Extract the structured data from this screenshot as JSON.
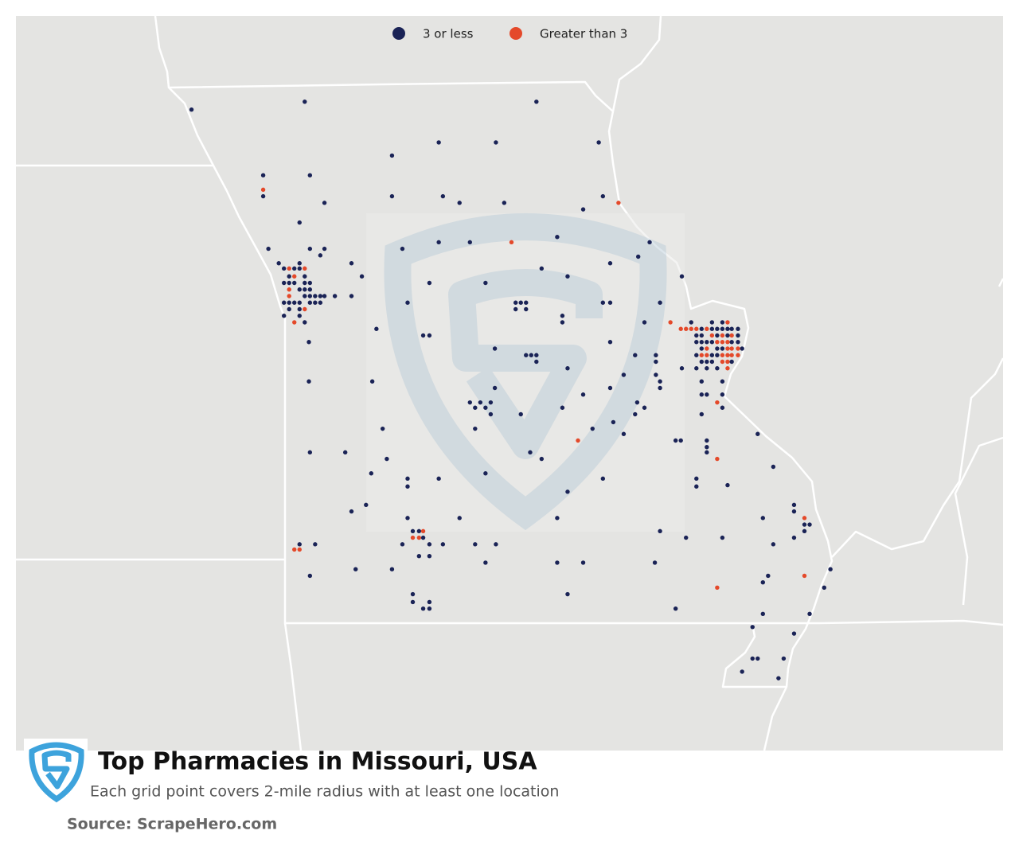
{
  "chart_data": {
    "type": "map",
    "title": "Top Pharmacies in Missouri, USA",
    "subtitle": "Each grid point covers 2-mile radius with at least one location",
    "source": "Source: ScrapeHero.com",
    "series": [
      {
        "name": "3 or less",
        "color": "#1a2356",
        "points": [
          [
            -95.52,
            40.4
          ],
          [
            -94.43,
            40.46
          ],
          [
            -92.2,
            40.46
          ],
          [
            -93.14,
            40.15
          ],
          [
            -92.59,
            40.15
          ],
          [
            -91.6,
            40.15
          ],
          [
            -93.59,
            40.05
          ],
          [
            -94.83,
            39.9
          ],
          [
            -94.38,
            39.9
          ],
          [
            -94.83,
            39.74
          ],
          [
            -93.59,
            39.74
          ],
          [
            -93.1,
            39.74
          ],
          [
            -91.56,
            39.74
          ],
          [
            -94.24,
            39.69
          ],
          [
            -92.94,
            39.69
          ],
          [
            -92.51,
            39.69
          ],
          [
            -91.75,
            39.64
          ],
          [
            -94.48,
            39.54
          ],
          [
            -94.78,
            39.34
          ],
          [
            -93.14,
            39.39
          ],
          [
            -92.84,
            39.39
          ],
          [
            -92.0,
            39.43
          ],
          [
            -91.11,
            39.39
          ],
          [
            -94.38,
            39.34
          ],
          [
            -94.24,
            39.34
          ],
          [
            -94.28,
            39.29
          ],
          [
            -94.68,
            39.23
          ],
          [
            -94.48,
            39.23
          ],
          [
            -93.98,
            39.23
          ],
          [
            -93.49,
            39.34
          ],
          [
            -91.22,
            39.28
          ],
          [
            -91.49,
            39.23
          ],
          [
            -92.15,
            39.19
          ],
          [
            -94.63,
            39.19
          ],
          [
            -94.53,
            39.19
          ],
          [
            -94.48,
            39.19
          ],
          [
            -94.58,
            39.13
          ],
          [
            -94.43,
            39.13
          ],
          [
            -94.63,
            39.08
          ],
          [
            -94.58,
            39.08
          ],
          [
            -94.53,
            39.08
          ],
          [
            -94.43,
            39.08
          ],
          [
            -94.38,
            39.08
          ],
          [
            -94.48,
            39.03
          ],
          [
            -94.43,
            39.03
          ],
          [
            -94.38,
            39.03
          ],
          [
            -94.43,
            38.98
          ],
          [
            -94.38,
            38.98
          ],
          [
            -94.33,
            38.98
          ],
          [
            -94.28,
            38.98
          ],
          [
            -94.24,
            38.98
          ],
          [
            -94.14,
            38.98
          ],
          [
            -93.98,
            38.98
          ],
          [
            -94.63,
            38.93
          ],
          [
            -94.58,
            38.93
          ],
          [
            -94.53,
            38.93
          ],
          [
            -94.48,
            38.93
          ],
          [
            -94.38,
            38.93
          ],
          [
            -94.33,
            38.93
          ],
          [
            -94.28,
            38.93
          ],
          [
            -94.58,
            38.88
          ],
          [
            -94.48,
            38.88
          ],
          [
            -94.63,
            38.83
          ],
          [
            -94.48,
            38.83
          ],
          [
            -94.43,
            38.78
          ],
          [
            -93.88,
            39.13
          ],
          [
            -93.23,
            39.08
          ],
          [
            -92.69,
            39.08
          ],
          [
            -91.9,
            39.13
          ],
          [
            -90.8,
            39.13
          ],
          [
            -93.44,
            38.93
          ],
          [
            -92.4,
            38.93
          ],
          [
            -92.35,
            38.93
          ],
          [
            -92.3,
            38.93
          ],
          [
            -91.56,
            38.93
          ],
          [
            -91.49,
            38.93
          ],
          [
            -91.01,
            38.93
          ],
          [
            -92.4,
            38.88
          ],
          [
            -92.3,
            38.88
          ],
          [
            -91.95,
            38.83
          ],
          [
            -91.95,
            38.78
          ],
          [
            -91.16,
            38.78
          ],
          [
            -93.74,
            38.73
          ],
          [
            -93.29,
            38.68
          ],
          [
            -93.23,
            38.68
          ],
          [
            -94.39,
            38.63
          ],
          [
            -92.6,
            38.58
          ],
          [
            -91.49,
            38.63
          ],
          [
            -92.3,
            38.53
          ],
          [
            -92.25,
            38.53
          ],
          [
            -92.2,
            38.53
          ],
          [
            -91.25,
            38.53
          ],
          [
            -91.05,
            38.53
          ],
          [
            -92.2,
            38.48
          ],
          [
            -91.9,
            38.43
          ],
          [
            -90.8,
            38.43
          ],
          [
            -91.05,
            38.48
          ],
          [
            -91.05,
            38.38
          ],
          [
            -91.01,
            38.33
          ],
          [
            -91.01,
            38.28
          ],
          [
            -91.36,
            38.38
          ],
          [
            -94.39,
            38.33
          ],
          [
            -93.78,
            38.33
          ],
          [
            -92.6,
            38.28
          ],
          [
            -91.49,
            38.28
          ],
          [
            -91.75,
            38.23
          ],
          [
            -92.84,
            38.17
          ],
          [
            -92.74,
            38.17
          ],
          [
            -92.64,
            38.17
          ],
          [
            -91.23,
            38.17
          ],
          [
            -92.79,
            38.13
          ],
          [
            -92.69,
            38.13
          ],
          [
            -92.64,
            38.08
          ],
          [
            -92.35,
            38.08
          ],
          [
            -91.95,
            38.13
          ],
          [
            -91.25,
            38.08
          ],
          [
            -91.16,
            38.13
          ],
          [
            -93.68,
            37.97
          ],
          [
            -92.79,
            37.97
          ],
          [
            -91.66,
            37.97
          ],
          [
            -91.46,
            38.02
          ],
          [
            -91.36,
            37.93
          ],
          [
            -94.38,
            37.79
          ],
          [
            -94.04,
            37.79
          ],
          [
            -92.26,
            37.79
          ],
          [
            -93.64,
            37.74
          ],
          [
            -92.15,
            37.74
          ],
          [
            -93.79,
            37.63
          ],
          [
            -92.69,
            37.63
          ],
          [
            -93.44,
            37.59
          ],
          [
            -93.44,
            37.53
          ],
          [
            -93.14,
            37.59
          ],
          [
            -91.56,
            37.59
          ],
          [
            -91.9,
            37.49
          ],
          [
            -93.84,
            37.39
          ],
          [
            -93.98,
            37.34
          ],
          [
            -93.44,
            37.29
          ],
          [
            -92.94,
            37.29
          ],
          [
            -92.0,
            37.29
          ],
          [
            -93.39,
            37.19
          ],
          [
            -93.33,
            37.19
          ],
          [
            -91.01,
            37.19
          ],
          [
            -93.29,
            37.14
          ],
          [
            -94.48,
            37.09
          ],
          [
            -94.33,
            37.09
          ],
          [
            -93.49,
            37.09
          ],
          [
            -93.23,
            37.09
          ],
          [
            -93.1,
            37.09
          ],
          [
            -92.79,
            37.09
          ],
          [
            -92.59,
            37.09
          ],
          [
            -93.33,
            37.0
          ],
          [
            -93.23,
            37.0
          ],
          [
            -92.69,
            36.95
          ],
          [
            -92.0,
            36.95
          ],
          [
            -91.75,
            36.95
          ],
          [
            -91.06,
            36.95
          ],
          [
            -94.38,
            36.85
          ],
          [
            -93.94,
            36.9
          ],
          [
            -93.59,
            36.9
          ],
          [
            -93.39,
            36.71
          ],
          [
            -91.9,
            36.71
          ],
          [
            -93.39,
            36.65
          ],
          [
            -93.23,
            36.65
          ],
          [
            -93.29,
            36.6
          ],
          [
            -93.23,
            36.6
          ],
          [
            -90.86,
            36.6
          ],
          [
            -90.71,
            38.78
          ],
          [
            -90.51,
            38.78
          ],
          [
            -90.41,
            38.78
          ],
          [
            -90.61,
            38.73
          ],
          [
            -90.51,
            38.73
          ],
          [
            -90.46,
            38.73
          ],
          [
            -90.41,
            38.73
          ],
          [
            -90.36,
            38.73
          ],
          [
            -90.32,
            38.73
          ],
          [
            -90.26,
            38.73
          ],
          [
            -90.66,
            38.68
          ],
          [
            -90.61,
            38.68
          ],
          [
            -90.46,
            38.68
          ],
          [
            -90.36,
            38.68
          ],
          [
            -90.26,
            38.68
          ],
          [
            -90.66,
            38.63
          ],
          [
            -90.61,
            38.63
          ],
          [
            -90.56,
            38.63
          ],
          [
            -90.51,
            38.63
          ],
          [
            -90.32,
            38.63
          ],
          [
            -90.26,
            38.63
          ],
          [
            -90.61,
            38.58
          ],
          [
            -90.46,
            38.58
          ],
          [
            -90.41,
            38.58
          ],
          [
            -90.22,
            38.58
          ],
          [
            -90.66,
            38.53
          ],
          [
            -90.51,
            38.53
          ],
          [
            -90.46,
            38.53
          ],
          [
            -90.61,
            38.48
          ],
          [
            -90.56,
            38.48
          ],
          [
            -90.51,
            38.48
          ],
          [
            -90.32,
            38.48
          ],
          [
            -90.66,
            38.43
          ],
          [
            -90.56,
            38.43
          ],
          [
            -90.46,
            38.43
          ],
          [
            -90.61,
            38.33
          ],
          [
            -90.41,
            38.33
          ],
          [
            -90.61,
            38.23
          ],
          [
            -90.56,
            38.23
          ],
          [
            -90.41,
            38.23
          ],
          [
            -90.41,
            38.13
          ],
          [
            -90.61,
            38.08
          ],
          [
            -90.86,
            37.88
          ],
          [
            -90.81,
            37.88
          ],
          [
            -90.56,
            37.88
          ],
          [
            -90.56,
            37.83
          ],
          [
            -90.56,
            37.79
          ],
          [
            -90.07,
            37.93
          ],
          [
            -89.92,
            37.68
          ],
          [
            -90.66,
            37.59
          ],
          [
            -90.66,
            37.53
          ],
          [
            -90.36,
            37.54
          ],
          [
            -89.72,
            37.39
          ],
          [
            -89.72,
            37.34
          ],
          [
            -89.62,
            37.24
          ],
          [
            -89.57,
            37.24
          ],
          [
            -89.62,
            37.19
          ],
          [
            -90.02,
            37.29
          ],
          [
            -90.76,
            37.14
          ],
          [
            -90.41,
            37.14
          ],
          [
            -89.92,
            37.09
          ],
          [
            -89.72,
            37.14
          ],
          [
            -89.37,
            36.9
          ],
          [
            -89.97,
            36.85
          ],
          [
            -90.02,
            36.8
          ],
          [
            -89.43,
            36.76
          ],
          [
            -90.02,
            36.56
          ],
          [
            -89.57,
            36.56
          ],
          [
            -90.12,
            36.46
          ],
          [
            -89.72,
            36.41
          ],
          [
            -90.07,
            36.22
          ],
          [
            -90.12,
            36.22
          ],
          [
            -89.82,
            36.22
          ],
          [
            -90.22,
            36.12
          ],
          [
            -89.87,
            36.07
          ]
        ]
      },
      {
        "name": "Greater than 3",
        "color": "#e4492a",
        "points": [
          [
            -94.83,
            39.79
          ],
          [
            -91.41,
            39.69
          ],
          [
            -92.44,
            39.39
          ],
          [
            -94.58,
            39.19
          ],
          [
            -94.43,
            39.19
          ],
          [
            -94.53,
            39.13
          ],
          [
            -94.58,
            39.03
          ],
          [
            -94.58,
            38.98
          ],
          [
            -94.43,
            38.88
          ],
          [
            -94.53,
            38.78
          ],
          [
            -91.8,
            37.88
          ],
          [
            -90.46,
            37.74
          ],
          [
            -93.29,
            37.19
          ],
          [
            -93.39,
            37.14
          ],
          [
            -93.33,
            37.14
          ],
          [
            -94.53,
            37.05
          ],
          [
            -94.48,
            37.05
          ],
          [
            -89.62,
            37.29
          ],
          [
            -89.62,
            36.85
          ],
          [
            -90.46,
            36.76
          ],
          [
            -90.46,
            38.17
          ],
          [
            -90.91,
            38.78
          ],
          [
            -90.36,
            38.78
          ],
          [
            -90.81,
            38.73
          ],
          [
            -90.76,
            38.73
          ],
          [
            -90.71,
            38.73
          ],
          [
            -90.66,
            38.73
          ],
          [
            -90.56,
            38.73
          ],
          [
            -90.51,
            38.68
          ],
          [
            -90.41,
            38.68
          ],
          [
            -90.32,
            38.68
          ],
          [
            -90.46,
            38.63
          ],
          [
            -90.41,
            38.63
          ],
          [
            -90.36,
            38.63
          ],
          [
            -90.56,
            38.58
          ],
          [
            -90.36,
            38.58
          ],
          [
            -90.32,
            38.58
          ],
          [
            -90.26,
            38.58
          ],
          [
            -90.61,
            38.53
          ],
          [
            -90.56,
            38.53
          ],
          [
            -90.41,
            38.53
          ],
          [
            -90.36,
            38.53
          ],
          [
            -90.32,
            38.53
          ],
          [
            -90.26,
            38.53
          ],
          [
            -90.41,
            38.48
          ],
          [
            -90.36,
            38.48
          ],
          [
            -90.36,
            38.43
          ]
        ]
      }
    ]
  }
}
